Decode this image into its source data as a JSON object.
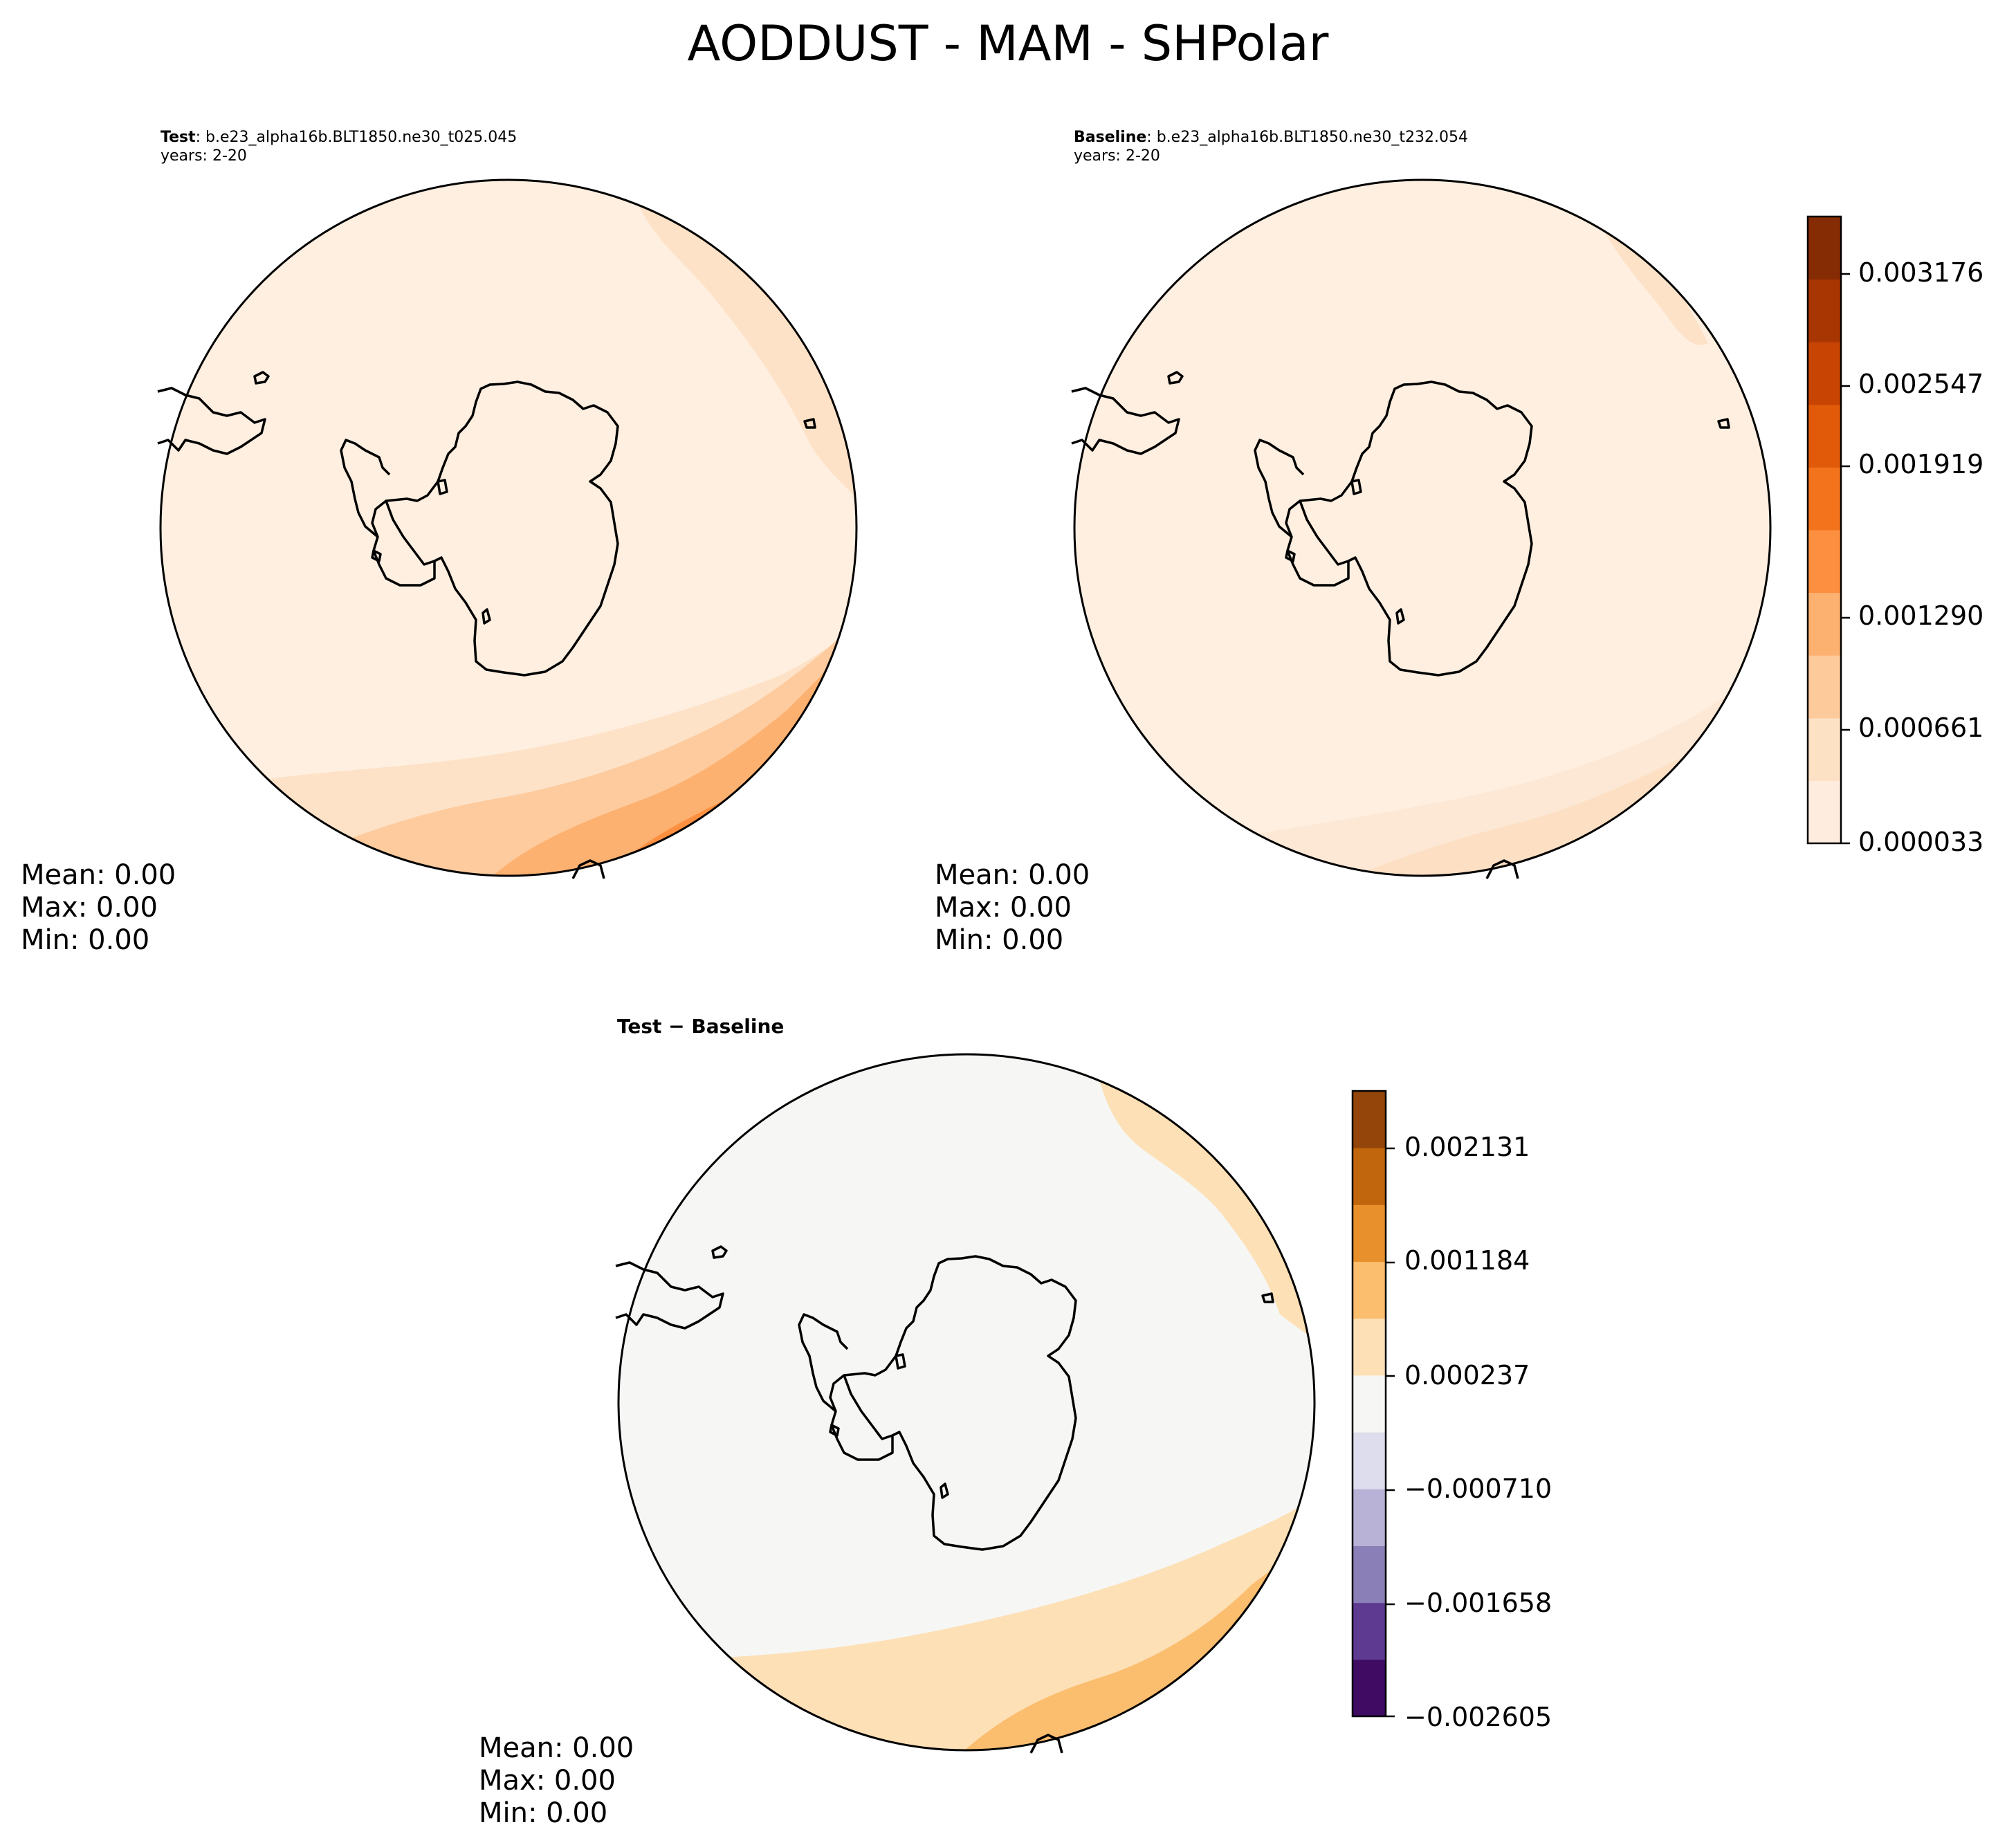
{
  "figure": {
    "title": "AODDUST - MAM - SHPolar"
  },
  "panels": {
    "test": {
      "label": "Test",
      "case": ": b.e23_alpha16b.BLT1850.ne30_t025.045",
      "years": "years: 2-20",
      "stats": {
        "mean": "Mean:  0.00",
        "max": "Max:  0.00",
        "min": "Min:  0.00"
      }
    },
    "baseline": {
      "label": "Baseline",
      "case": ": b.e23_alpha16b.BLT1850.ne30_t232.054",
      "years": "years: 2-20",
      "stats": {
        "mean": "Mean:  0.00",
        "max": "Max:  0.00",
        "min": "Min:  0.00"
      }
    },
    "diff": {
      "title": "Test − Baseline",
      "stats": {
        "mean": "Mean:  0.00",
        "max": "Max:  0.00",
        "min": "Min:  0.00"
      }
    }
  },
  "colorbars": {
    "main": {
      "ticks": [
        "0.003176",
        "0.002547",
        "0.001919",
        "0.001290",
        "0.000661",
        "0.000033"
      ],
      "colors": [
        "#feeddf",
        "#fde1c5",
        "#fdca9b",
        "#fdb170",
        "#fd9040",
        "#f3731d",
        "#e05a0a",
        "#c74402",
        "#a83603",
        "#862c05"
      ]
    },
    "diff": {
      "ticks": [
        "0.002131",
        "0.001184",
        "0.000237",
        "−0.000710",
        "−0.001658",
        "−0.002605"
      ],
      "colors": [
        "#3f0b63",
        "#5e3a91",
        "#8a7fb6",
        "#b8b2d6",
        "#dedded",
        "#f6f6f4",
        "#fde0b6",
        "#fbbd6e",
        "#e8912c",
        "#c1660d",
        "#93450a"
      ]
    }
  },
  "map_colors": {
    "ocean_background": "#ffefe0",
    "diff_background": "#f6f6f4",
    "coastline": "#000000"
  }
}
